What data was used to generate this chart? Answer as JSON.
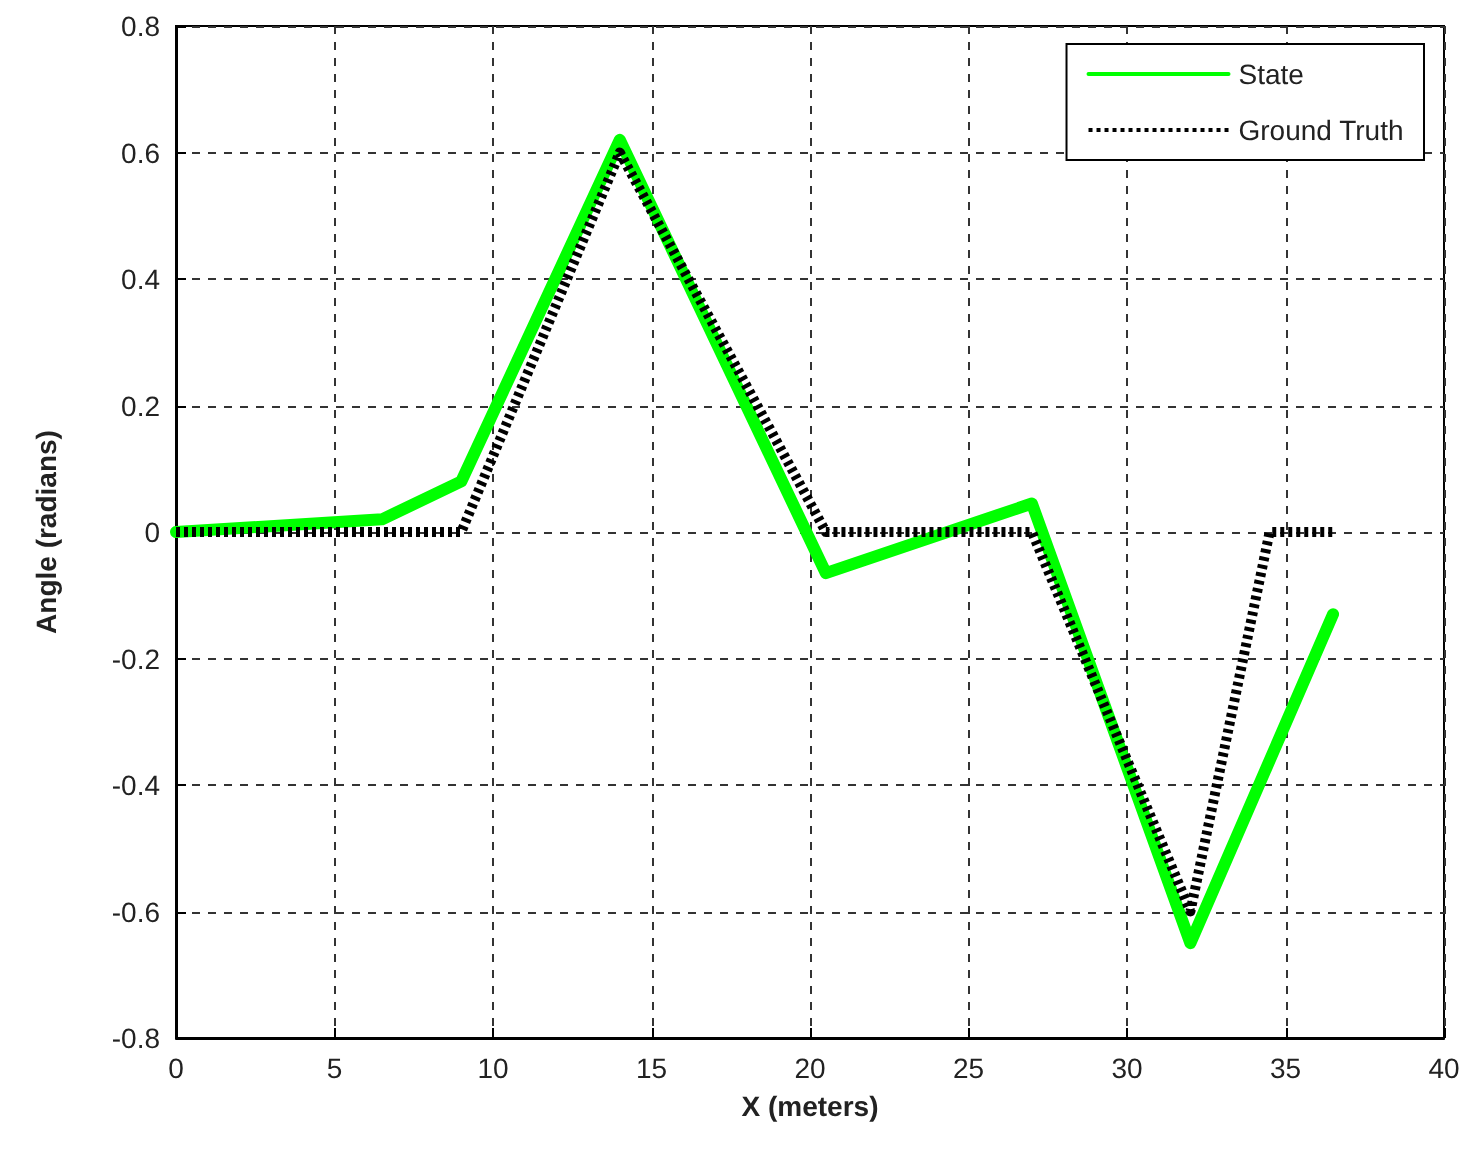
{
  "chart_data": {
    "type": "line",
    "xlabel": "X (meters)",
    "ylabel": "Angle (radians)",
    "xlim": [
      0,
      40
    ],
    "xticks": [
      0,
      5,
      10,
      15,
      20,
      25,
      30,
      35,
      40
    ],
    "ylim": [
      -0.8,
      0.8
    ],
    "yticks": [
      -0.8,
      -0.6,
      -0.4,
      -0.2,
      0,
      0.2,
      0.4,
      0.6,
      0.8
    ],
    "grid": true,
    "legend": "top right",
    "marker": "none",
    "series": [
      {
        "name": "State",
        "color": "#00ff00",
        "line_style": "solid",
        "x": [
          0,
          6.5,
          9,
          14,
          20.5,
          27,
          32,
          36.5
        ],
        "values": [
          0,
          0.02,
          0.08,
          0.62,
          -0.065,
          0.045,
          -0.65,
          -0.13
        ]
      },
      {
        "name": "Ground Truth",
        "color": "#000000",
        "line_style": "dotted",
        "x": [
          0,
          9,
          14,
          20.5,
          27,
          32,
          34.5,
          36.5
        ],
        "values": [
          0,
          0,
          0.6,
          0,
          0,
          -0.6,
          0,
          0
        ]
      }
    ]
  }
}
